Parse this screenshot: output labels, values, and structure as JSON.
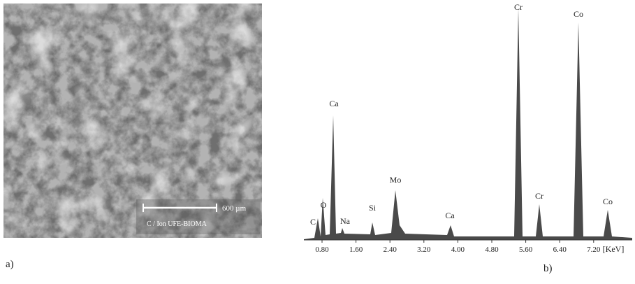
{
  "panels": [
    {
      "label": "a)",
      "scale_bar": "600 µm",
      "caption": "C / Ion UFE-BIOMA"
    },
    {
      "label": "b)",
      "peaks": [
        "C",
        "O",
        "Ca",
        "Na",
        "Si",
        "Mo",
        "Ca",
        "Cr",
        "Cr",
        "Co",
        "Co"
      ],
      "x_ticks": [
        "0.80",
        "1.60",
        "2.40",
        "3.20",
        "4.00",
        "4.80",
        "5.60",
        "6.40",
        "7.20"
      ],
      "x_unit": "[KeV]"
    }
  ]
}
